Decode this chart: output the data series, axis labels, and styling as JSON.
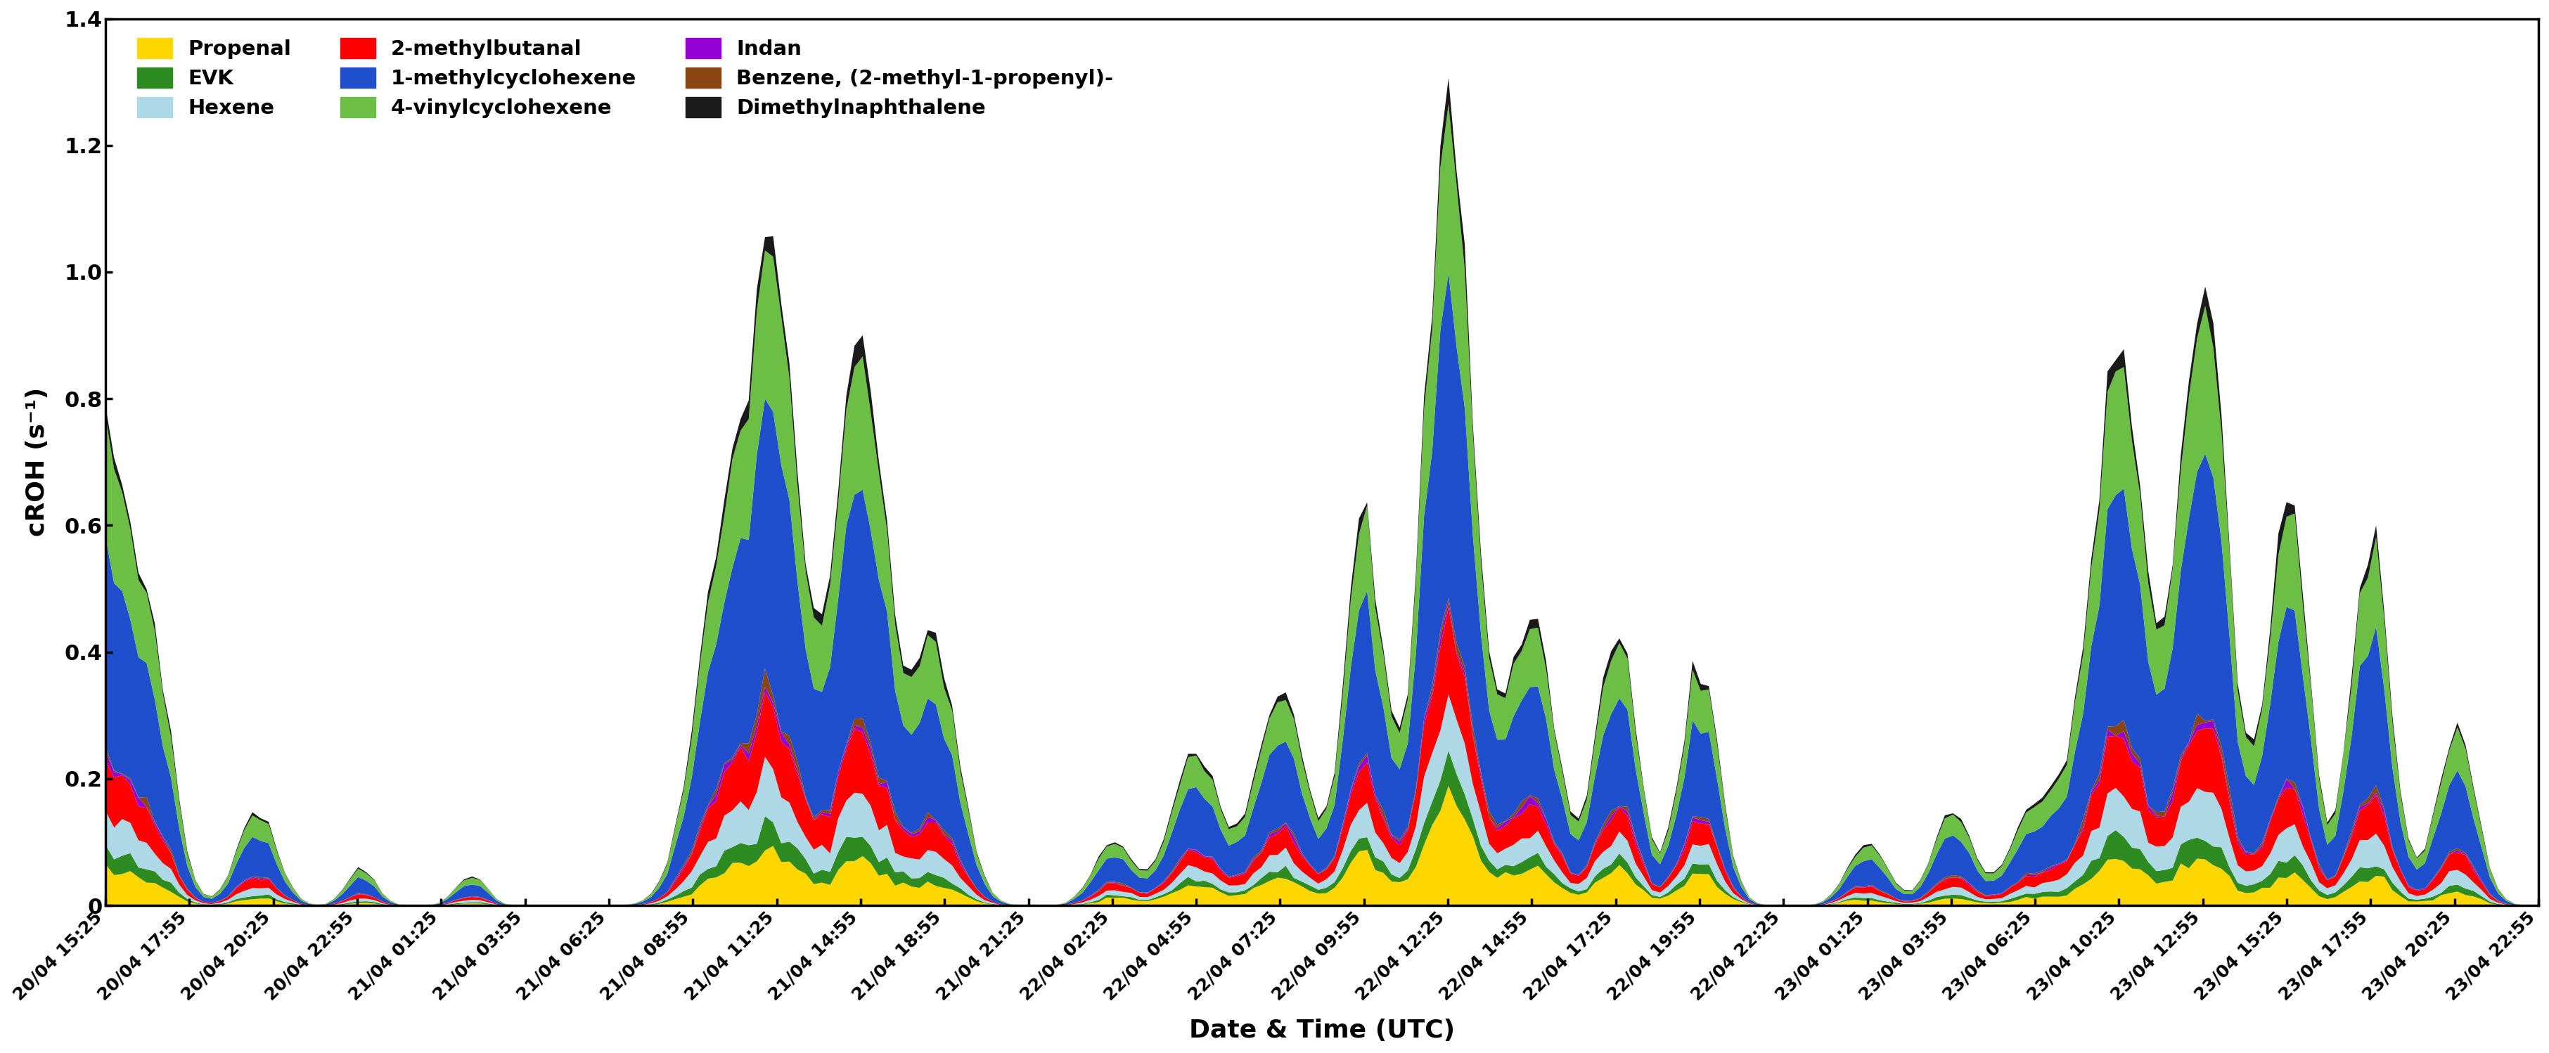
{
  "xlabel": "Date & Time (UTC)",
  "ylabel": "cROH (s⁻¹)",
  "ylim": [
    0,
    1.4
  ],
  "yticks": [
    0,
    0.2,
    0.4,
    0.6,
    0.8,
    1.0,
    1.2,
    1.4
  ],
  "series_names": [
    "Propenal",
    "2-methylbutanal",
    "Indan",
    "EVK",
    "1-methylcyclohexene",
    "Benzene, (2-methyl-1-propenyl)-",
    "Hexene",
    "4-vinylcyclohexene",
    "Dimethylnaphthalene"
  ],
  "colors": [
    "#FFD700",
    "#FF0000",
    "#9400D3",
    "#2E8B22",
    "#1F4FCC",
    "#8B4513",
    "#ADD8E6",
    "#6BBF44",
    "#1A1A1A"
  ],
  "xtick_labels": [
    "20/04 15:25",
    "20/04 17:55",
    "20/04 20:25",
    "20/04 22:55",
    "21/04 01:25",
    "21/04 03:55",
    "21/04 06:25",
    "21/04 08:55",
    "21/04 11:25",
    "21/04 14:55",
    "21/04 18:55",
    "21/04 21:25",
    "22/04 02:25",
    "22/04 04:55",
    "22/04 07:25",
    "22/04 09:55",
    "22/04 12:25",
    "22/04 14:55",
    "22/04 17:25",
    "22/04 19:55",
    "22/04 22:25",
    "23/04 01:25",
    "23/04 03:55",
    "23/04 06:25",
    "23/04 10:25",
    "23/04 12:55",
    "23/04 15:25",
    "23/04 17:55",
    "23/04 20:25",
    "23/04 22:55"
  ],
  "legend_order": [
    0,
    3,
    6,
    1,
    4,
    7,
    2,
    5,
    8
  ],
  "background_color": "#ffffff"
}
